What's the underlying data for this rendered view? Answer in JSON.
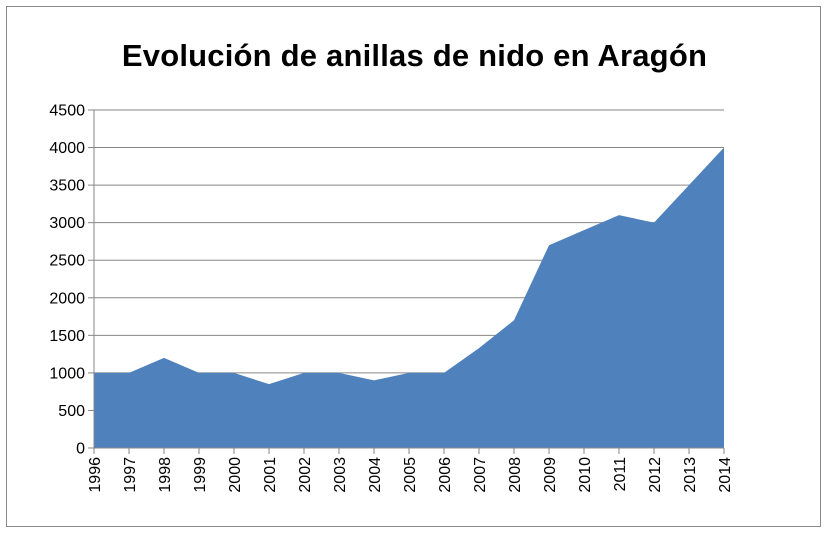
{
  "chart_data": {
    "type": "area",
    "title": "Evolución de anillas de nido en Aragón",
    "xlabel": "",
    "ylabel": "",
    "x": [
      "1996",
      "1997",
      "1998",
      "1999",
      "2000",
      "2001",
      "2002",
      "2003",
      "2004",
      "2005",
      "2006",
      "2007",
      "2008",
      "2009",
      "2010",
      "2011",
      "2012",
      "2013",
      "2014"
    ],
    "series": [
      {
        "values": [
          1000,
          1000,
          1200,
          1000,
          1000,
          850,
          1000,
          1000,
          900,
          1000,
          1000,
          1330,
          1700,
          2700,
          2900,
          3100,
          3000,
          3500,
          4000
        ]
      }
    ],
    "ylim": [
      0,
      4500
    ],
    "yticks": [
      0,
      500,
      1000,
      1500,
      2000,
      2500,
      3000,
      3500,
      4000,
      4500
    ],
    "grid": true,
    "legend": "none",
    "colors": {
      "area": "#4f81bd",
      "grid": "#868686",
      "axis": "#868686"
    }
  }
}
